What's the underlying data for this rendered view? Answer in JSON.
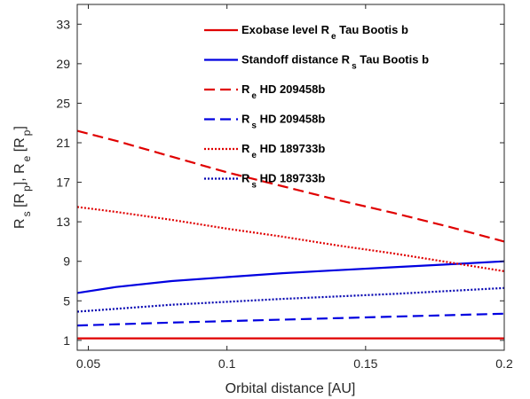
{
  "chart_data": {
    "type": "line",
    "title": "",
    "xlabel": "Orbital distance [AU]",
    "ylabel": {
      "parts": [
        {
          "text": "R",
          "sub": false
        },
        {
          "text": "s",
          "sub": true
        },
        {
          "text": " [R",
          "sub": false
        },
        {
          "text": "p",
          "sub": true
        },
        {
          "text": "], R",
          "sub": false
        },
        {
          "text": "e",
          "sub": true
        },
        {
          "text": " [R",
          "sub": false
        },
        {
          "text": "p",
          "sub": true
        },
        {
          "text": "]",
          "sub": false
        }
      ]
    },
    "xlim": [
      0.046,
      0.2
    ],
    "ylim": [
      0,
      35
    ],
    "xticks": [
      0.05,
      0.1,
      0.15,
      0.2
    ],
    "xtick_labels": [
      "0.05",
      "0.1",
      "0.15",
      "0.2"
    ],
    "yticks": [
      1,
      5,
      9,
      13,
      17,
      21,
      25,
      29,
      33
    ],
    "ytick_labels": [
      "1",
      "5",
      "9",
      "13",
      "17",
      "21",
      "25",
      "29",
      "33"
    ],
    "grid": false,
    "legend_position": "top-right",
    "series": [
      {
        "legend": [
          {
            "text": "Exobase level R",
            "sub": false
          },
          {
            "text": "e",
            "sub": true
          },
          {
            "text": " Tau Bootis b",
            "sub": false
          }
        ],
        "color": "#e00000",
        "dash": "solid",
        "x": [
          0.046,
          0.08,
          0.12,
          0.16,
          0.2
        ],
        "y": [
          1.2,
          1.2,
          1.2,
          1.2,
          1.2
        ]
      },
      {
        "legend": [
          {
            "text": "Standoff distance R",
            "sub": false
          },
          {
            "text": "s",
            "sub": true
          },
          {
            "text": " Tau Bootis b",
            "sub": false
          }
        ],
        "color": "#0000e0",
        "dash": "solid",
        "x": [
          0.046,
          0.06,
          0.08,
          0.1,
          0.12,
          0.14,
          0.16,
          0.18,
          0.2
        ],
        "y": [
          5.8,
          6.4,
          7.0,
          7.4,
          7.8,
          8.1,
          8.4,
          8.7,
          9.0
        ]
      },
      {
        "legend": [
          {
            "text": "R",
            "sub": false
          },
          {
            "text": "e",
            "sub": true
          },
          {
            "text": " HD 209458b",
            "sub": false
          }
        ],
        "color": "#e00000",
        "dash": "dashed",
        "x": [
          0.046,
          0.06,
          0.08,
          0.1,
          0.12,
          0.14,
          0.16,
          0.18,
          0.2
        ],
        "y": [
          22.2,
          21.2,
          19.6,
          18.0,
          16.6,
          15.2,
          13.9,
          12.5,
          11.0
        ]
      },
      {
        "legend": [
          {
            "text": "R",
            "sub": false
          },
          {
            "text": "s",
            "sub": true
          },
          {
            "text": " HD 209458b",
            "sub": false
          }
        ],
        "color": "#0000e0",
        "dash": "dashed",
        "x": [
          0.046,
          0.08,
          0.12,
          0.16,
          0.2
        ],
        "y": [
          2.5,
          2.8,
          3.1,
          3.4,
          3.7
        ]
      },
      {
        "legend": [
          {
            "text": "R",
            "sub": false
          },
          {
            "text": "e",
            "sub": true
          },
          {
            "text": " HD 189733b",
            "sub": false
          }
        ],
        "color": "#e00000",
        "dash": "dotted",
        "x": [
          0.046,
          0.06,
          0.08,
          0.1,
          0.12,
          0.14,
          0.16,
          0.18,
          0.2
        ],
        "y": [
          14.5,
          14.0,
          13.2,
          12.3,
          11.5,
          10.6,
          9.8,
          8.9,
          8.0
        ]
      },
      {
        "legend": [
          {
            "text": "R",
            "sub": false
          },
          {
            "text": "s",
            "sub": true
          },
          {
            "text": " HD 189733b",
            "sub": false
          }
        ],
        "color": "#0000b0",
        "dash": "dotted",
        "x": [
          0.046,
          0.08,
          0.12,
          0.16,
          0.2
        ],
        "y": [
          3.9,
          4.6,
          5.2,
          5.7,
          6.3
        ]
      }
    ]
  }
}
